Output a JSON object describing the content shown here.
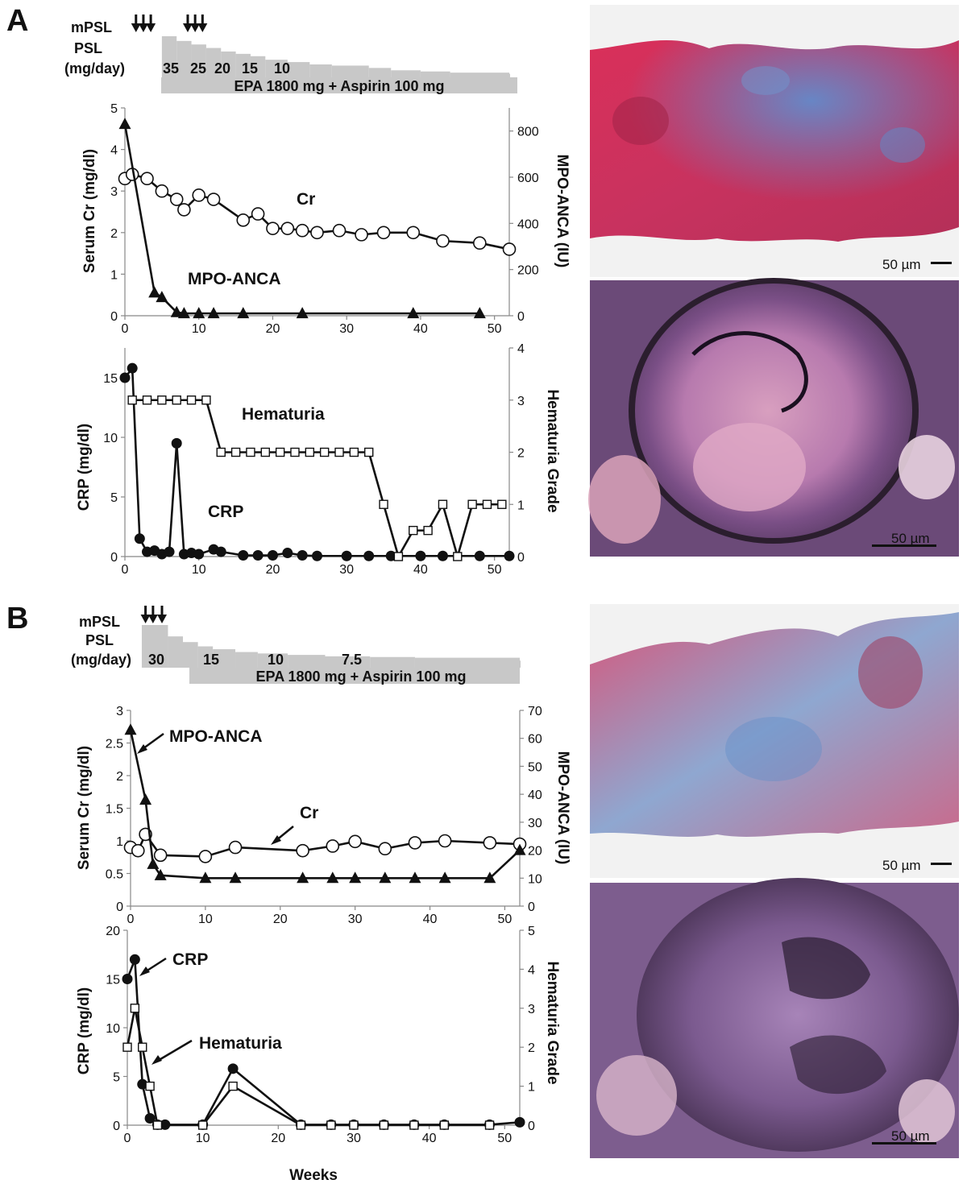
{
  "panels": [
    {
      "letter": "A",
      "treatment": {
        "mpsl_label": "mPSL",
        "psl_label": "PSL",
        "unit_label": "(mg/day)",
        "mpsl_pulse_weeks": [
          [
            1.5,
            2.5,
            3.5
          ],
          [
            8.5,
            9.5,
            10.5
          ]
        ],
        "psl_steps": [
          [
            5,
            35
          ],
          [
            7,
            31
          ],
          [
            9,
            28
          ],
          [
            11,
            25
          ],
          [
            13,
            22
          ],
          [
            15,
            20
          ],
          [
            17,
            18
          ],
          [
            19,
            15
          ],
          [
            22,
            13
          ],
          [
            25,
            11
          ],
          [
            28,
            10
          ],
          [
            33,
            8
          ],
          [
            36,
            6
          ],
          [
            40,
            5
          ],
          [
            44,
            4
          ],
          [
            52,
            3
          ]
        ],
        "psl_dose_labels": [
          "35",
          "25",
          "20",
          "15",
          "10"
        ],
        "epa_label": "EPA 1800 mg + Aspirin 100 mg",
        "epa_start_week": 5
      },
      "top_chart": {
        "left_axis_title": "Serum Cr (mg/dl)",
        "right_axis_title": "MPO-ANCA (IU)",
        "left_ticks": [
          "0",
          "1",
          "2",
          "3",
          "4",
          "5"
        ],
        "right_ticks": [
          "0",
          "200",
          "400",
          "600",
          "800"
        ],
        "x_ticks": [
          "0",
          "10",
          "20",
          "30",
          "40",
          "50"
        ],
        "cr_label": "Cr",
        "anca_label": "MPO-ANCA"
      },
      "bottom_chart": {
        "left_axis_title": "CRP  (mg/dl)",
        "right_axis_title": "Hematuria Grade",
        "left_ticks": [
          "0",
          "5",
          "10",
          "15"
        ],
        "right_ticks": [
          "0",
          "1",
          "2",
          "3",
          "4"
        ],
        "x_ticks": [
          "0",
          "10",
          "20",
          "30",
          "40",
          "50"
        ],
        "crp_label": "CRP",
        "hematuria_label": "Hematuria"
      },
      "micrograph_top_scale": "50 µm",
      "micrograph_bottom_scale": "50 µm"
    },
    {
      "letter": "B",
      "treatment": {
        "mpsl_label": "mPSL",
        "psl_label": "PSL",
        "unit_label": "(mg/day)",
        "mpsl_pulse_weeks": [
          [
            2,
            3,
            4.2
          ]
        ],
        "psl_steps": [
          [
            1.5,
            30
          ],
          [
            5,
            22
          ],
          [
            7,
            18
          ],
          [
            9,
            15
          ],
          [
            11,
            13
          ],
          [
            14,
            11
          ],
          [
            17,
            10
          ],
          [
            21,
            9
          ],
          [
            26,
            8
          ],
          [
            32,
            7.5
          ],
          [
            38,
            7
          ],
          [
            52,
            5
          ]
        ],
        "psl_dose_labels": [
          "30",
          "15",
          "10",
          "7.5"
        ],
        "epa_label": "EPA 1800 mg + Aspirin 100 mg",
        "epa_start_week": 8
      },
      "top_chart": {
        "left_axis_title": "Serum Cr (mg/dl)",
        "right_axis_title": "MPO-ANCA (IU)",
        "left_ticks": [
          "0",
          "0.5",
          "1",
          "1.5",
          "2",
          "2.5",
          "3"
        ],
        "right_ticks": [
          "0",
          "10",
          "20",
          "30",
          "40",
          "50",
          "60",
          "70"
        ],
        "x_ticks": [
          "0",
          "10",
          "20",
          "30",
          "40",
          "50"
        ],
        "cr_label": "Cr",
        "anca_label": "MPO-ANCA"
      },
      "bottom_chart": {
        "left_axis_title": "CRP  (mg/dl)",
        "right_axis_title": "Hematuria Grade",
        "left_ticks": [
          "0",
          "5",
          "10",
          "15",
          "20"
        ],
        "right_ticks": [
          "0",
          "1",
          "2",
          "3",
          "4",
          "5"
        ],
        "x_ticks": [
          "0",
          "10",
          "20",
          "30",
          "40",
          "50"
        ],
        "crp_label": "CRP",
        "hematuria_label": "Hematuria"
      },
      "micrograph_top_scale": "50 µm",
      "micrograph_bottom_scale": "50 µm",
      "x_axis_title": "Weeks"
    }
  ],
  "chart_data": [
    {
      "type": "line",
      "panel": "A",
      "xlim": [
        0,
        52
      ],
      "y_left_lim": [
        0,
        5
      ],
      "y_right_lim": [
        0,
        900
      ],
      "series": [
        {
          "name": "Cr",
          "axis": "left",
          "marker": "open-circle",
          "x": [
            0,
            1,
            3,
            5,
            7,
            8,
            10,
            12,
            16,
            18,
            20,
            22,
            24,
            26,
            29,
            32,
            35,
            39,
            43,
            48,
            52
          ],
          "y": [
            3.3,
            3.4,
            3.3,
            3.0,
            2.8,
            2.55,
            2.9,
            2.8,
            2.3,
            2.45,
            2.1,
            2.1,
            2.05,
            2.0,
            2.05,
            1.95,
            2.0,
            2.0,
            1.8,
            1.75,
            1.6
          ]
        },
        {
          "name": "MPO-ANCA",
          "axis": "right",
          "marker": "filled-triangle",
          "x": [
            0,
            4,
            5,
            7,
            8,
            10,
            12,
            16,
            24,
            39,
            48
          ],
          "y": [
            830,
            100,
            80,
            15,
            10,
            10,
            10,
            10,
            10,
            10,
            10
          ]
        }
      ]
    },
    {
      "type": "line",
      "panel": "A",
      "xlim": [
        0,
        52
      ],
      "y_left_lim": [
        0,
        17.5
      ],
      "y_right_lim": [
        0,
        4
      ],
      "series": [
        {
          "name": "CRP",
          "axis": "left",
          "marker": "filled-circle",
          "x": [
            0,
            1,
            2,
            3,
            4,
            5,
            6,
            7,
            8,
            9,
            10,
            12,
            13,
            16,
            18,
            20,
            22,
            24,
            26,
            30,
            33,
            36,
            40,
            43,
            48,
            52
          ],
          "y": [
            15,
            15.8,
            1.5,
            0.4,
            0.5,
            0.2,
            0.4,
            9.5,
            0.2,
            0.3,
            0.2,
            0.6,
            0.4,
            0.1,
            0.1,
            0.1,
            0.3,
            0.1,
            0.05,
            0.05,
            0.05,
            0.05,
            0.05,
            0.05,
            0.05,
            0.05
          ]
        },
        {
          "name": "Hematuria",
          "axis": "right",
          "marker": "open-square",
          "x": [
            1,
            3,
            5,
            7,
            9,
            11,
            13,
            15,
            17,
            19,
            21,
            23,
            25,
            27,
            29,
            31,
            33,
            35,
            37,
            39,
            41,
            43,
            45,
            47,
            49,
            51
          ],
          "y": [
            3,
            3,
            3,
            3,
            3,
            3,
            2,
            2,
            2,
            2,
            2,
            2,
            2,
            2,
            2,
            2,
            2,
            1,
            0,
            0.5,
            0.5,
            1,
            0,
            1,
            1,
            1
          ]
        }
      ]
    },
    {
      "type": "line",
      "panel": "B",
      "xlim": [
        0,
        52
      ],
      "y_left_lim": [
        0,
        3
      ],
      "y_right_lim": [
        0,
        70
      ],
      "series": [
        {
          "name": "Cr",
          "axis": "left",
          "marker": "open-circle",
          "x": [
            0,
            1,
            2,
            4,
            10,
            14,
            23,
            27,
            30,
            34,
            38,
            42,
            48,
            52
          ],
          "y": [
            0.9,
            0.85,
            1.1,
            0.78,
            0.76,
            0.9,
            0.85,
            0.92,
            0.99,
            0.88,
            0.97,
            1.0,
            0.97,
            0.95
          ]
        },
        {
          "name": "MPO-ANCA",
          "axis": "right",
          "marker": "filled-triangle",
          "x": [
            0,
            2,
            3,
            4,
            10,
            14,
            23,
            27,
            30,
            34,
            38,
            42,
            48,
            52
          ],
          "y": [
            63,
            38,
            15,
            11,
            10,
            10,
            10,
            10,
            10,
            10,
            10,
            10,
            10,
            20
          ]
        }
      ]
    },
    {
      "type": "line",
      "panel": "B",
      "xlim": [
        0,
        52
      ],
      "y_left_lim": [
        0,
        20
      ],
      "y_right_lim": [
        0,
        5
      ],
      "series": [
        {
          "name": "CRP",
          "axis": "left",
          "marker": "filled-circle",
          "x": [
            0,
            1,
            2,
            3,
            4,
            5,
            10,
            14,
            23,
            27,
            30,
            34,
            38,
            42,
            48,
            52
          ],
          "y": [
            15,
            17,
            4.2,
            0.7,
            0.05,
            0.05,
            0.05,
            5.8,
            0.05,
            0.05,
            0.05,
            0.05,
            0.05,
            0.05,
            0.05,
            0.3
          ]
        },
        {
          "name": "Hematuria",
          "axis": "right",
          "marker": "open-square",
          "x": [
            0,
            1,
            2,
            3,
            4,
            10,
            14,
            23,
            27,
            30,
            34,
            38,
            42,
            48
          ],
          "y": [
            2,
            3,
            2,
            1,
            0,
            0,
            1,
            0,
            0,
            0,
            0,
            0,
            0,
            0
          ]
        }
      ]
    }
  ]
}
